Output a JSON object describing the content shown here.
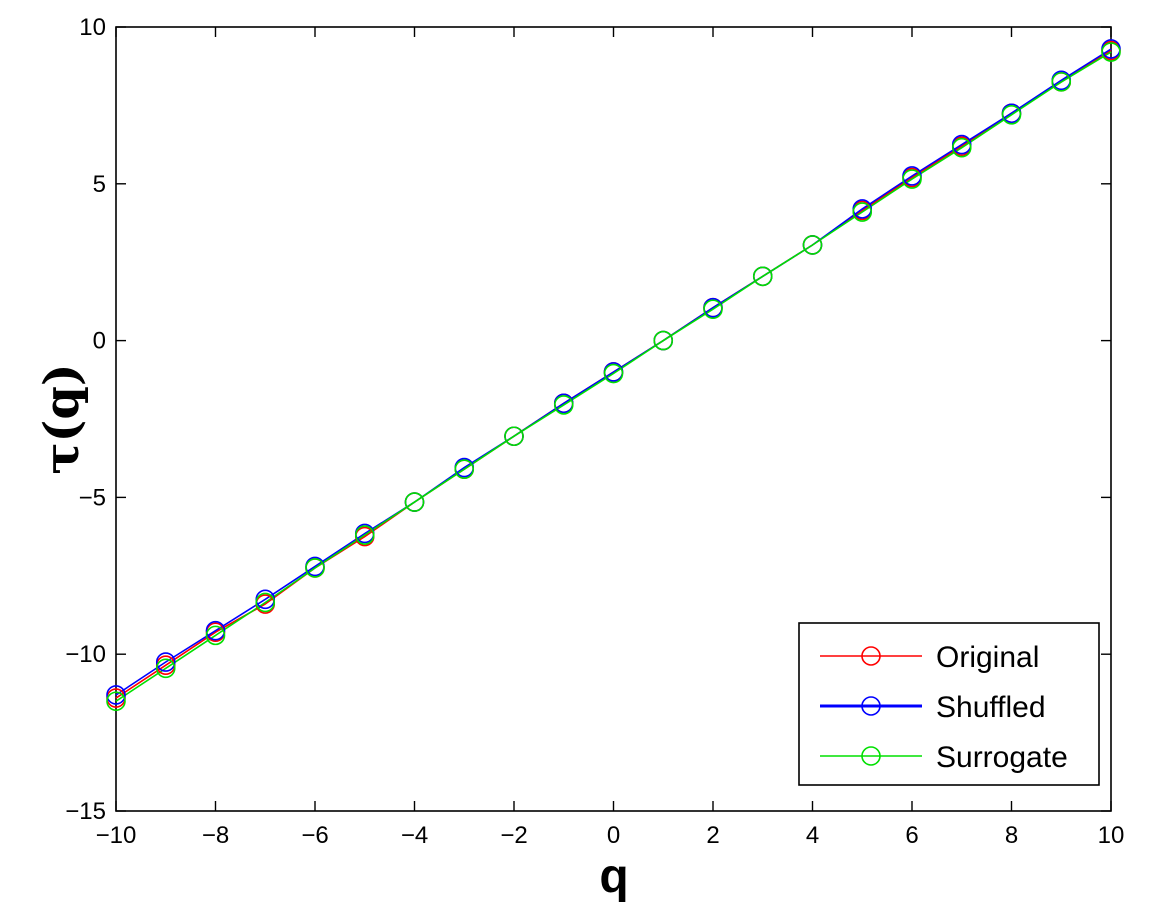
{
  "chart_data": {
    "type": "line",
    "xlabel": "q",
    "ylabel": "τ(q)",
    "xlim": [
      -10,
      10
    ],
    "ylim": [
      -15,
      10
    ],
    "xticks": [
      -10,
      -8,
      -6,
      -4,
      -2,
      0,
      2,
      4,
      6,
      8,
      10
    ],
    "yticks": [
      -15,
      -10,
      -5,
      0,
      5,
      10
    ],
    "xtick_labels": [
      "−10",
      "−8",
      "−6",
      "−4",
      "−2",
      "0",
      "2",
      "4",
      "6",
      "8",
      "10"
    ],
    "ytick_labels": [
      "−15",
      "−10",
      "−5",
      "0",
      "5",
      "10"
    ],
    "grid": false,
    "legend_position": "bottom-right",
    "x": [
      -10,
      -9,
      -8,
      -7,
      -6,
      -5,
      -4,
      -3,
      -2,
      -1,
      0,
      1,
      2,
      3,
      4,
      5,
      6,
      7,
      8,
      9,
      10
    ],
    "series": [
      {
        "name": "Original",
        "color": "#ff0000",
        "marker": "circle",
        "values": [
          -11.4,
          -10.35,
          -9.3,
          -8.4,
          -7.25,
          -6.25,
          -5.15,
          -4.1,
          -3.05,
          -2.0,
          -1.0,
          0.0,
          1.05,
          2.05,
          3.05,
          4.15,
          5.2,
          6.2,
          7.25,
          8.25,
          9.25
        ]
      },
      {
        "name": "Shuffled",
        "color": "#0000ff",
        "marker": "circle",
        "values": [
          -11.3,
          -10.25,
          -9.25,
          -8.25,
          -7.2,
          -6.15,
          -5.15,
          -4.05,
          -3.05,
          -2.0,
          -1.0,
          0.0,
          1.05,
          2.05,
          3.05,
          4.2,
          5.25,
          6.25,
          7.25,
          8.3,
          9.3
        ]
      },
      {
        "name": "Surrogate",
        "color": "#00e000",
        "marker": "circle",
        "values": [
          -11.5,
          -10.45,
          -9.4,
          -8.35,
          -7.25,
          -6.2,
          -5.15,
          -4.1,
          -3.05,
          -2.05,
          -1.05,
          0.0,
          1.0,
          2.05,
          3.05,
          4.1,
          5.15,
          6.15,
          7.2,
          8.25,
          9.2
        ]
      }
    ]
  }
}
